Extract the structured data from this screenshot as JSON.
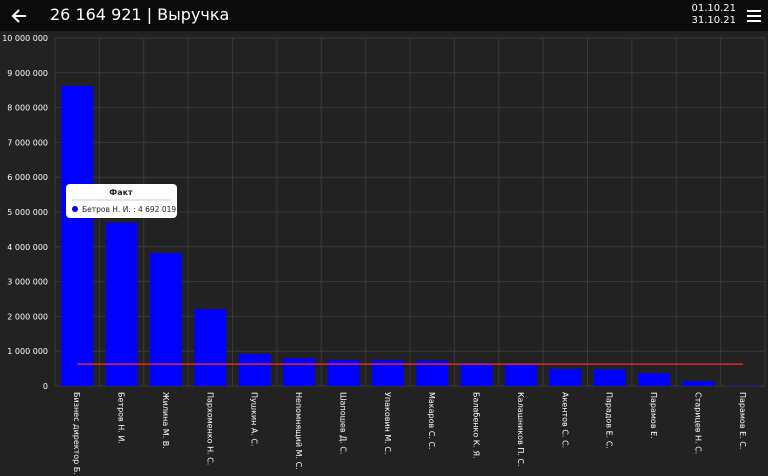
{
  "header": {
    "title": "26 164 921 | Выручка",
    "date_from": "01.10.21",
    "date_to": "31.10.21"
  },
  "chart_data": {
    "type": "bar",
    "categories": [
      "Бизнес директор Б.",
      "Бетров Н. И.",
      "Жилина М. В.",
      "Пархоменко Н. С.",
      "Пушкин А. С.",
      "Непомнящий М. С.",
      "Шапошев Д. С.",
      "Упаковин М. С.",
      "Макаров С. С.",
      "Балабенко К. Я.",
      "Калашников П. С.",
      "Акентов С. С.",
      "Парадов Е. С.",
      "Парамов Е.",
      "Старицев Н. С.",
      "Парамов Е. С."
    ],
    "series": [
      {
        "name": "Факт",
        "color": "#0000ff",
        "values": [
          8620000,
          4692019,
          3820000,
          2210000,
          920000,
          800000,
          750000,
          740000,
          730000,
          660000,
          650000,
          490000,
          480000,
          370000,
          140000,
          10000
        ]
      }
    ],
    "reference_line": {
      "value": 630000,
      "color": "#e0282e"
    },
    "ylim": [
      0,
      10000000
    ],
    "yticks": [
      0,
      {
        "value": 1000000,
        "label": "1 000 000"
      },
      {
        "value": 2000000,
        "label": "2 000 000"
      },
      {
        "value": 3000000,
        "label": "3 000 000"
      },
      {
        "value": 4000000,
        "label": "4 000 000"
      },
      {
        "value": 5000000,
        "label": "5 000 000"
      },
      {
        "value": 6000000,
        "label": "6 000 000"
      },
      {
        "value": 7000000,
        "label": "7 000 000"
      },
      {
        "value": 8000000,
        "label": "8 000 000"
      },
      {
        "value": 9000000,
        "label": "9 000 000"
      },
      {
        "value": 10000000,
        "label": "10 000 000"
      }
    ],
    "grid": true,
    "tooltip": {
      "index": 1,
      "text": "Бетров Н. И. : 4 692 019"
    }
  }
}
